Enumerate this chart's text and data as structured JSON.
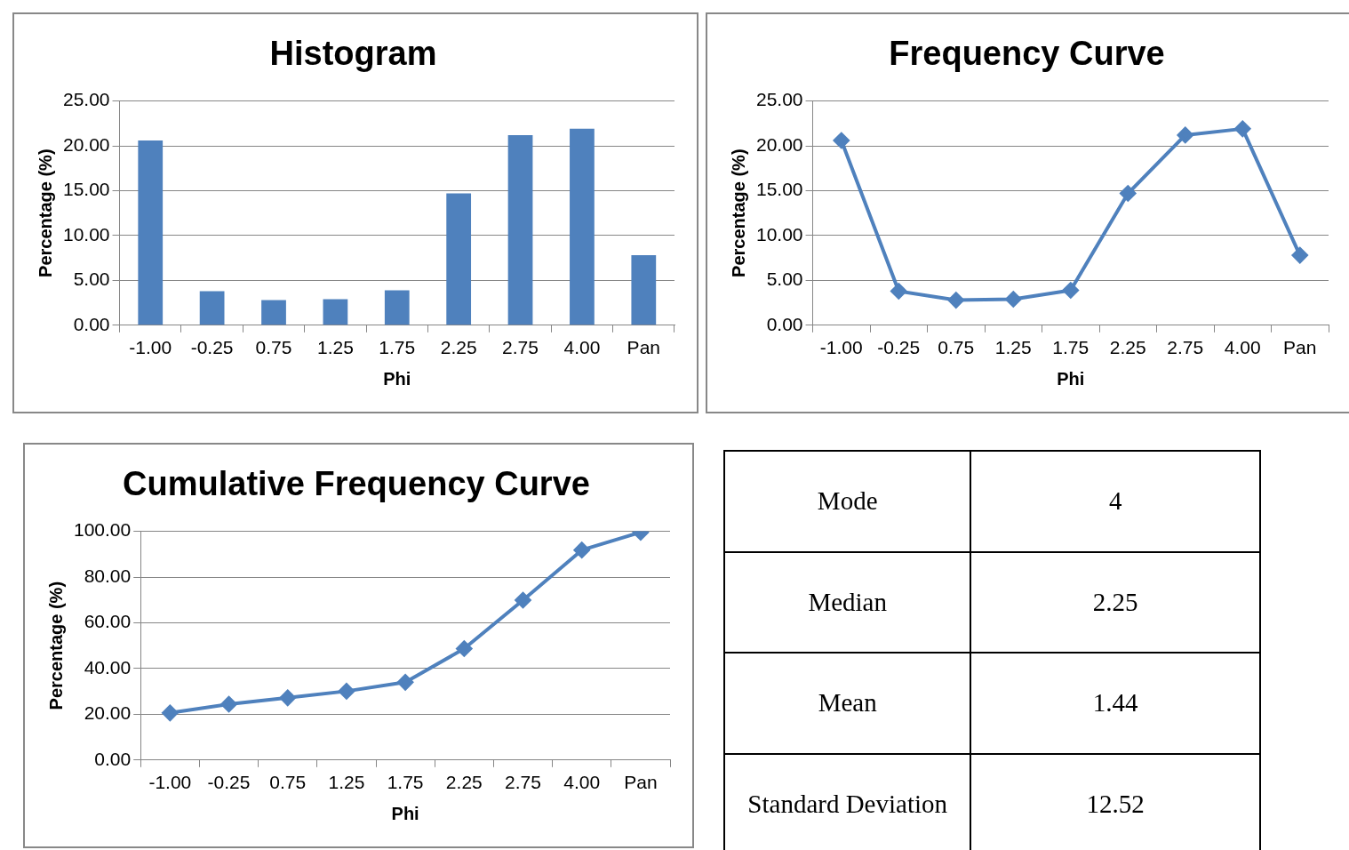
{
  "chart_data": [
    {
      "type": "bar",
      "title": "Histogram",
      "xlabel": "Phi",
      "ylabel": "Percentage (%)",
      "categories": [
        "-1.00",
        "-0.25",
        "0.75",
        "1.25",
        "1.75",
        "2.25",
        "2.75",
        "4.00",
        "Pan"
      ],
      "values": [
        20.6,
        3.8,
        2.8,
        2.9,
        3.9,
        14.7,
        21.2,
        21.9,
        7.8
      ],
      "color": "#4f81bd",
      "ylim": [
        0,
        25
      ],
      "yticks": [
        {
          "value": 0,
          "label": "0.00"
        },
        {
          "value": 5,
          "label": "5.00"
        },
        {
          "value": 10,
          "label": "10.00"
        },
        {
          "value": 15,
          "label": "15.00"
        },
        {
          "value": 20,
          "label": "20.00"
        },
        {
          "value": 25,
          "label": "25.00"
        }
      ],
      "grid": "y"
    },
    {
      "type": "line",
      "title": "Frequency Curve",
      "xlabel": "Phi",
      "ylabel": "Percentage (%)",
      "categories": [
        "-1.00",
        "-0.25",
        "0.75",
        "1.25",
        "1.75",
        "2.25",
        "2.75",
        "4.00",
        "Pan"
      ],
      "values": [
        20.6,
        3.8,
        2.8,
        2.9,
        3.9,
        14.7,
        21.2,
        21.9,
        7.8
      ],
      "color": "#4f81bd",
      "marker": "diamond",
      "ylim": [
        0,
        25
      ],
      "yticks": [
        {
          "value": 0,
          "label": "0.00"
        },
        {
          "value": 5,
          "label": "5.00"
        },
        {
          "value": 10,
          "label": "10.00"
        },
        {
          "value": 15,
          "label": "15.00"
        },
        {
          "value": 20,
          "label": "20.00"
        },
        {
          "value": 25,
          "label": "25.00"
        }
      ],
      "grid": "y"
    },
    {
      "type": "line",
      "title": "Cumulative Frequency Curve",
      "xlabel": "Phi",
      "ylabel": "Percentage (%)",
      "categories": [
        "-1.00",
        "-0.25",
        "0.75",
        "1.25",
        "1.75",
        "2.25",
        "2.75",
        "4.00",
        "Pan"
      ],
      "values": [
        20.6,
        24.4,
        27.2,
        30.1,
        34.0,
        48.7,
        69.9,
        91.8,
        99.6
      ],
      "color": "#4f81bd",
      "marker": "diamond",
      "ylim": [
        0,
        100
      ],
      "yticks": [
        {
          "value": 0,
          "label": "0.00"
        },
        {
          "value": 20,
          "label": "20.00"
        },
        {
          "value": 40,
          "label": "40.00"
        },
        {
          "value": 60,
          "label": "60.00"
        },
        {
          "value": 80,
          "label": "80.00"
        },
        {
          "value": 100,
          "label": "100.00"
        }
      ],
      "grid": "y"
    },
    {
      "type": "other",
      "annotations": [
        "Mode",
        "4",
        "Median",
        "2.25",
        "Mean",
        "1.44",
        "Standard Deviation",
        "12.52"
      ]
    }
  ]
}
